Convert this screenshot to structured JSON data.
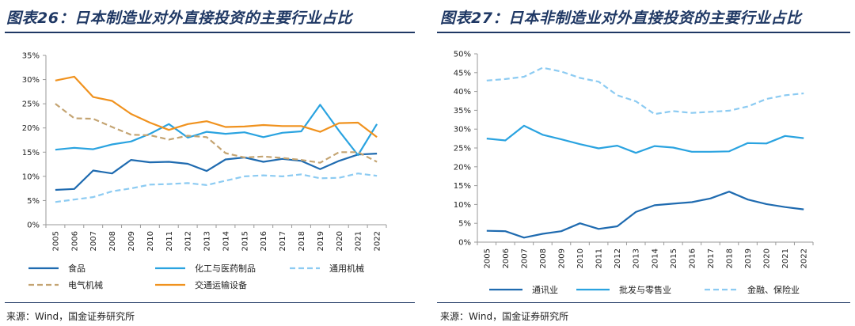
{
  "left": {
    "title": "图表26：日本制造业对外直接投资的主要行业占比",
    "source": "来源：Wind，国金证券研究所"
  },
  "right": {
    "title": "图表27：日本非制造业对外直接投资的主要行业占比",
    "source": "来源：Wind，国金证券研究所"
  },
  "chart_data": [
    {
      "type": "line",
      "title": "图表26：日本制造业对外直接投资的主要行业占比",
      "x": [
        "2005",
        "2006",
        "2007",
        "2008",
        "2009",
        "2010",
        "2011",
        "2012",
        "2013",
        "2014",
        "2015",
        "2016",
        "2017",
        "2018",
        "2019",
        "2020",
        "2021",
        "2022"
      ],
      "ylim": [
        0,
        35
      ],
      "yticks": [
        0,
        5,
        10,
        15,
        20,
        25,
        30,
        35
      ],
      "ytick_labels": [
        "0%",
        "5%",
        "10%",
        "15%",
        "20%",
        "25%",
        "30%",
        "35%"
      ],
      "legend_position": "bottom",
      "series": [
        {
          "name": "食品",
          "color": "#1f6bb0",
          "dash": "solid",
          "values": [
            7.2,
            7.4,
            11.2,
            10.6,
            13.4,
            12.9,
            13.0,
            12.6,
            11.1,
            13.5,
            13.9,
            13.0,
            13.6,
            13.2,
            11.5,
            13.2,
            14.5,
            14.7
          ]
        },
        {
          "name": "化工与医药制品",
          "color": "#2aa3e0",
          "dash": "solid",
          "values": [
            15.5,
            15.9,
            15.6,
            16.6,
            17.2,
            18.8,
            20.8,
            18.0,
            19.2,
            18.8,
            19.1,
            18.1,
            19.0,
            19.3,
            24.8,
            19.4,
            14.4,
            20.8
          ]
        },
        {
          "name": "通用机械",
          "color": "#8ccbf2",
          "dash": "dashed",
          "values": [
            4.7,
            5.2,
            5.7,
            6.9,
            7.5,
            8.3,
            8.4,
            8.6,
            8.2,
            9.1,
            10.0,
            10.2,
            10.0,
            10.4,
            9.6,
            9.7,
            10.6,
            10.1
          ]
        },
        {
          "name": "电气机械",
          "color": "#c4a472",
          "dash": "dashed",
          "values": [
            25.0,
            22.0,
            21.9,
            20.2,
            18.6,
            18.5,
            17.6,
            18.4,
            18.1,
            14.8,
            13.9,
            14.1,
            13.8,
            13.4,
            12.8,
            15.0,
            15.0,
            13.0
          ]
        },
        {
          "name": "交通运输设备",
          "color": "#f0921e",
          "dash": "solid",
          "values": [
            29.8,
            30.6,
            26.4,
            25.6,
            22.9,
            21.1,
            19.6,
            20.8,
            21.4,
            20.2,
            20.3,
            20.6,
            20.4,
            20.4,
            19.2,
            21.0,
            21.1,
            18.1
          ]
        }
      ]
    },
    {
      "type": "line",
      "title": "图表27：日本非制造业对外直接投资的主要行业占比",
      "x": [
        "2005",
        "2006",
        "2007",
        "2008",
        "2009",
        "2010",
        "2011",
        "2012",
        "2013",
        "2014",
        "2015",
        "2016",
        "2017",
        "2018",
        "2019",
        "2020",
        "2021",
        "2022"
      ],
      "ylim": [
        0,
        50
      ],
      "yticks": [
        0,
        5,
        10,
        15,
        20,
        25,
        30,
        35,
        40,
        45,
        50
      ],
      "ytick_labels": [
        "0%",
        "5%",
        "10%",
        "15%",
        "20%",
        "25%",
        "30%",
        "35%",
        "40%",
        "45%",
        "50%"
      ],
      "legend_position": "bottom",
      "series": [
        {
          "name": "通讯业",
          "color": "#1f6bb0",
          "dash": "solid",
          "values": [
            3.0,
            2.9,
            1.2,
            2.2,
            2.9,
            5.0,
            3.5,
            4.2,
            8.0,
            9.8,
            10.2,
            10.6,
            11.6,
            13.4,
            11.3,
            10.1,
            9.3,
            8.7
          ]
        },
        {
          "name": "批发与零售业",
          "color": "#2aa3e0",
          "dash": "solid",
          "values": [
            27.5,
            27.0,
            30.9,
            28.5,
            27.3,
            26.0,
            24.9,
            25.6,
            23.7,
            25.5,
            25.1,
            24.0,
            24.0,
            24.1,
            26.3,
            26.2,
            28.2,
            27.6
          ]
        },
        {
          "name": "金融、保险业",
          "color": "#8ccbf2",
          "dash": "dashed",
          "values": [
            42.9,
            43.3,
            43.9,
            46.3,
            45.3,
            43.6,
            42.6,
            39.0,
            37.4,
            34.0,
            34.8,
            34.3,
            34.6,
            34.9,
            36.0,
            38.0,
            39.0,
            39.5
          ]
        }
      ]
    }
  ]
}
